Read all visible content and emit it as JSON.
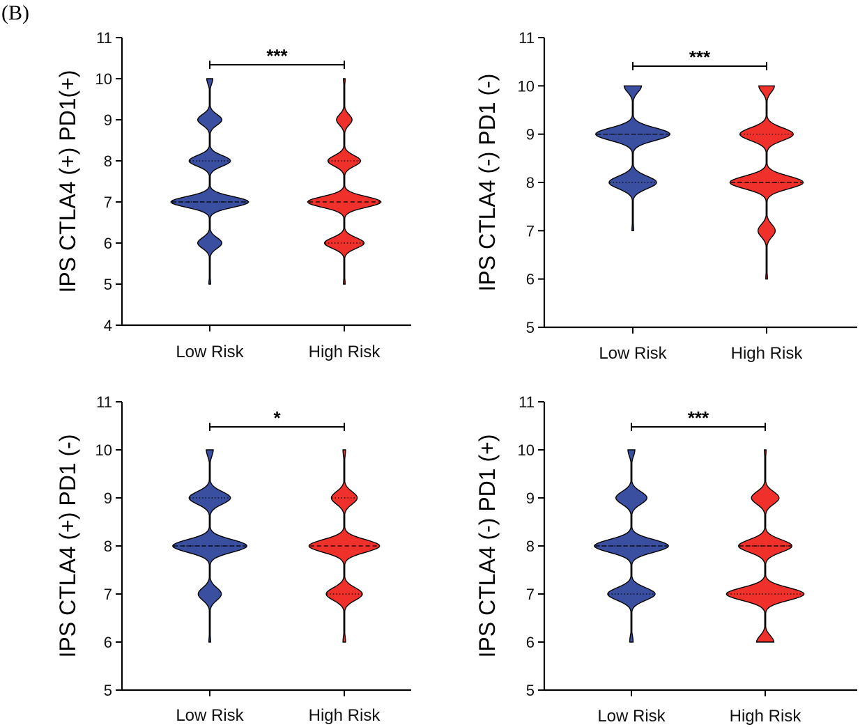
{
  "panel_label": "(B)",
  "colors": {
    "low": "#3a4fa0",
    "high": "#f0302a",
    "axis": "#000000"
  },
  "chart_data": [
    {
      "type": "violin",
      "ylabel": "IPS CTLA4 (+) PD1(+)",
      "ylim": [
        4,
        11
      ],
      "yticks": [
        4,
        5,
        6,
        7,
        8,
        9,
        10,
        11
      ],
      "categories": [
        "Low Risk",
        "High Risk"
      ],
      "significance": "***",
      "series": [
        {
          "name": "Low Risk",
          "color": "#3a4fa0",
          "median": 7,
          "q1": 7,
          "q3": 8,
          "density": [
            [
              5,
              0.02
            ],
            [
              6,
              0.28
            ],
            [
              7,
              0.9
            ],
            [
              8,
              0.48
            ],
            [
              9,
              0.28
            ],
            [
              10,
              0.07
            ]
          ]
        },
        {
          "name": "High Risk",
          "color": "#f0302a",
          "median": 7,
          "q1": 6,
          "q3": 8,
          "density": [
            [
              5,
              0.02
            ],
            [
              6,
              0.46
            ],
            [
              7,
              0.85
            ],
            [
              8,
              0.38
            ],
            [
              9,
              0.18
            ],
            [
              10,
              0.02
            ]
          ]
        }
      ]
    },
    {
      "type": "violin",
      "ylabel": "IPS CTLA4 (-) PD1 (-)",
      "ylim": [
        5,
        11
      ],
      "yticks": [
        5,
        6,
        7,
        8,
        9,
        10,
        11
      ],
      "categories": [
        "Low Risk",
        "High Risk"
      ],
      "significance": "***",
      "series": [
        {
          "name": "Low Risk",
          "color": "#3a4fa0",
          "median": 9,
          "q1": 8,
          "q3": 9,
          "density": [
            [
              7,
              0.02
            ],
            [
              8,
              0.55
            ],
            [
              9,
              0.86
            ],
            [
              10,
              0.2
            ]
          ]
        },
        {
          "name": "High Risk",
          "color": "#f0302a",
          "median": 8,
          "q1": 8,
          "q3": 9,
          "density": [
            [
              6,
              0.02
            ],
            [
              7,
              0.2
            ],
            [
              8,
              0.85
            ],
            [
              9,
              0.62
            ],
            [
              10,
              0.18
            ]
          ]
        }
      ]
    },
    {
      "type": "violin",
      "ylabel": "IPS CTLA4 (+) PD1 (-)",
      "ylim": [
        5,
        11
      ],
      "yticks": [
        5,
        6,
        7,
        8,
        9,
        10,
        11
      ],
      "categories": [
        "Low Risk",
        "High Risk"
      ],
      "significance": "*",
      "series": [
        {
          "name": "Low Risk",
          "color": "#3a4fa0",
          "median": 8,
          "q1": 8,
          "q3": 9,
          "density": [
            [
              6,
              0.02
            ],
            [
              7,
              0.27
            ],
            [
              8,
              0.86
            ],
            [
              9,
              0.48
            ],
            [
              10,
              0.08
            ]
          ]
        },
        {
          "name": "High Risk",
          "color": "#f0302a",
          "median": 8,
          "q1": 7,
          "q3": 9,
          "density": [
            [
              6,
              0.03
            ],
            [
              7,
              0.42
            ],
            [
              8,
              0.82
            ],
            [
              9,
              0.3
            ],
            [
              10,
              0.03
            ]
          ]
        }
      ]
    },
    {
      "type": "violin",
      "ylabel": "IPS CTLA4 (-) PD1 (+)",
      "ylim": [
        5,
        11
      ],
      "yticks": [
        5,
        6,
        7,
        8,
        9,
        10,
        11
      ],
      "categories": [
        "Low Risk",
        "High Risk"
      ],
      "significance": "***",
      "series": [
        {
          "name": "Low Risk",
          "color": "#3a4fa0",
          "median": 8,
          "q1": 7,
          "q3": 8,
          "density": [
            [
              6,
              0.04
            ],
            [
              7,
              0.55
            ],
            [
              8,
              0.86
            ],
            [
              9,
              0.36
            ],
            [
              10,
              0.08
            ]
          ]
        },
        {
          "name": "High Risk",
          "color": "#f0302a",
          "median": 8,
          "q1": 7,
          "q3": 8,
          "density": [
            [
              6,
              0.2
            ],
            [
              7,
              0.9
            ],
            [
              8,
              0.62
            ],
            [
              9,
              0.32
            ],
            [
              10,
              0.02
            ]
          ]
        }
      ]
    }
  ]
}
